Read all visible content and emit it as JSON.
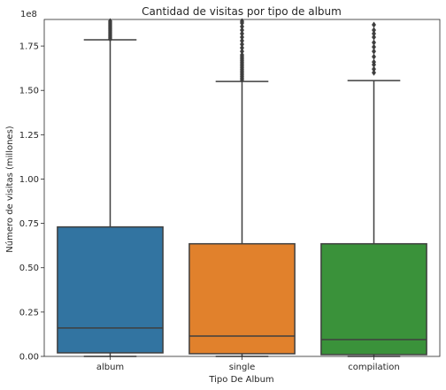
{
  "chart_data": {
    "type": "box",
    "title": "Cantidad de visitas por tipo de album",
    "xlabel": "Tipo De Album",
    "ylabel": "Número de visitas (millones)",
    "offset_label": "1e8",
    "ylim": [
      0,
      1.9
    ],
    "yticks": [
      {
        "value": 0.0,
        "label": "0.00"
      },
      {
        "value": 0.25,
        "label": "0.25"
      },
      {
        "value": 0.5,
        "label": "0.50"
      },
      {
        "value": 0.75,
        "label": "0.75"
      },
      {
        "value": 1.0,
        "label": "1.00"
      },
      {
        "value": 1.25,
        "label": "1.25"
      },
      {
        "value": 1.5,
        "label": "1.50"
      },
      {
        "value": 1.75,
        "label": "1.75"
      }
    ],
    "grid": false,
    "legend": "none",
    "categories": [
      "album",
      "single",
      "compilation"
    ],
    "boxes": [
      {
        "category": "album",
        "color": "#3274a1",
        "whisker_low": 0.0,
        "q1": 0.02,
        "median": 0.16,
        "q3": 0.73,
        "whisker_high": 1.785,
        "outliers": [
          1.79,
          1.8,
          1.81,
          1.82,
          1.83,
          1.84,
          1.85,
          1.86,
          1.87,
          1.88,
          1.89
        ]
      },
      {
        "category": "single",
        "color": "#e1812c",
        "whisker_low": 0.0,
        "q1": 0.015,
        "median": 0.115,
        "q3": 0.635,
        "whisker_high": 1.55,
        "outliers": [
          1.56,
          1.57,
          1.58,
          1.59,
          1.6,
          1.61,
          1.62,
          1.63,
          1.64,
          1.65,
          1.66,
          1.67,
          1.68,
          1.69,
          1.7,
          1.72,
          1.74,
          1.76,
          1.78,
          1.8,
          1.82,
          1.84,
          1.86,
          1.88,
          1.89
        ]
      },
      {
        "category": "compilation",
        "color": "#3a923a",
        "whisker_low": 0.0,
        "q1": 0.01,
        "median": 0.095,
        "q3": 0.635,
        "whisker_high": 1.555,
        "outliers": [
          1.6,
          1.62,
          1.645,
          1.66,
          1.69,
          1.72,
          1.745,
          1.77,
          1.8,
          1.82,
          1.84,
          1.87
        ]
      }
    ]
  }
}
